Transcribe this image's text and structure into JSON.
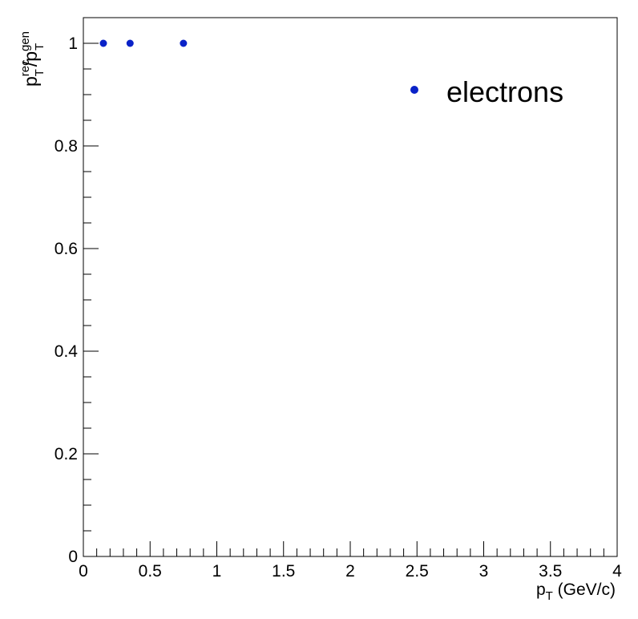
{
  "chart_data": {
    "type": "scatter",
    "xlabel": {
      "main": "p",
      "sub": "T",
      "rest": " (GeV/c)"
    },
    "ylabel": {
      "num_main": "p",
      "num_sup": "rec",
      "num_sub": "T",
      "sep": "/",
      "den_main": "p",
      "den_sup": "gen",
      "den_sub": "T"
    },
    "xlim": [
      0,
      4
    ],
    "ylim": [
      0,
      1.05
    ],
    "x_ticks": [
      {
        "value": 0,
        "label": "0"
      },
      {
        "value": 0.5,
        "label": "0.5"
      },
      {
        "value": 1,
        "label": "1"
      },
      {
        "value": 1.5,
        "label": "1.5"
      },
      {
        "value": 2,
        "label": "2"
      },
      {
        "value": 2.5,
        "label": "2.5"
      },
      {
        "value": 3,
        "label": "3"
      },
      {
        "value": 3.5,
        "label": "3.5"
      },
      {
        "value": 4,
        "label": "4"
      }
    ],
    "y_ticks": [
      {
        "value": 0,
        "label": "0"
      },
      {
        "value": 0.2,
        "label": "0.2"
      },
      {
        "value": 0.4,
        "label": "0.4"
      },
      {
        "value": 0.6,
        "label": "0.6"
      },
      {
        "value": 0.8,
        "label": "0.8"
      },
      {
        "value": 1,
        "label": "1"
      }
    ],
    "grid": false,
    "legend_position": "top-right",
    "series": [
      {
        "name": "electrons",
        "color": "#0a22c8",
        "points": [
          {
            "x": 0.15,
            "y": 1.0
          },
          {
            "x": 0.35,
            "y": 1.0
          },
          {
            "x": 0.75,
            "y": 1.0
          }
        ]
      }
    ]
  }
}
